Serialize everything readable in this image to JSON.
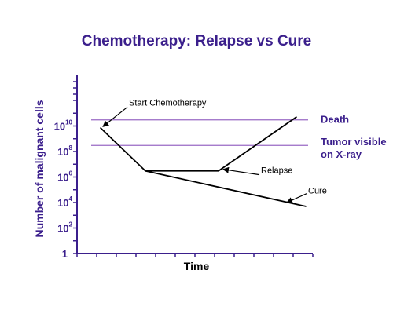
{
  "colors": {
    "accent": "#3b1f8c",
    "reference_line": "#9a6ac4",
    "series": "#000000"
  },
  "chart_data": {
    "type": "line",
    "title": "Chemotherapy: Relapse vs Cure",
    "xlabel": "Time",
    "ylabel": "Number of malignant cells",
    "y_scale": "log10",
    "ylim": [
      1,
      1000000000000.0
    ],
    "y_ticks": [
      {
        "base": "1",
        "exp": "",
        "value": 1
      },
      {
        "base": "10",
        "exp": "2",
        "value": 100
      },
      {
        "base": "10",
        "exp": "4",
        "value": 10000
      },
      {
        "base": "10",
        "exp": "6",
        "value": 1000000
      },
      {
        "base": "10",
        "exp": "8",
        "value": 100000000
      },
      {
        "base": "10",
        "exp": "10",
        "value": 10000000000
      }
    ],
    "x_ticks": [],
    "xlim": [
      0,
      100
    ],
    "grid": false,
    "reference_lines": [
      {
        "label_lines": [
          "Death"
        ],
        "y": 30000000000
      },
      {
        "label_lines": [
          "Tumor visible",
          "on X-ray"
        ],
        "y": 300000000
      }
    ],
    "series": [
      {
        "points": [
          [
            10,
            7000000000
          ],
          [
            29,
            3000000
          ],
          [
            60,
            3000000
          ],
          [
            93,
            50000000000
          ]
        ]
      },
      {
        "points": [
          [
            29,
            3000000
          ],
          [
            97,
            5000
          ]
        ]
      }
    ],
    "annotations": [
      {
        "text": "Start Chemotherapy",
        "target": [
          11,
          9000000000
        ],
        "text_pos": [
          22,
          400000000000
        ],
        "anchor": "start"
      },
      {
        "text": "Relapse",
        "target": [
          62,
          4000000
        ],
        "text_pos": [
          78,
          2000000
        ],
        "anchor": "start"
      },
      {
        "text": "Cure",
        "target": [
          89,
          10000
        ],
        "text_pos": [
          98,
          50000
        ],
        "anchor": "start"
      }
    ]
  }
}
